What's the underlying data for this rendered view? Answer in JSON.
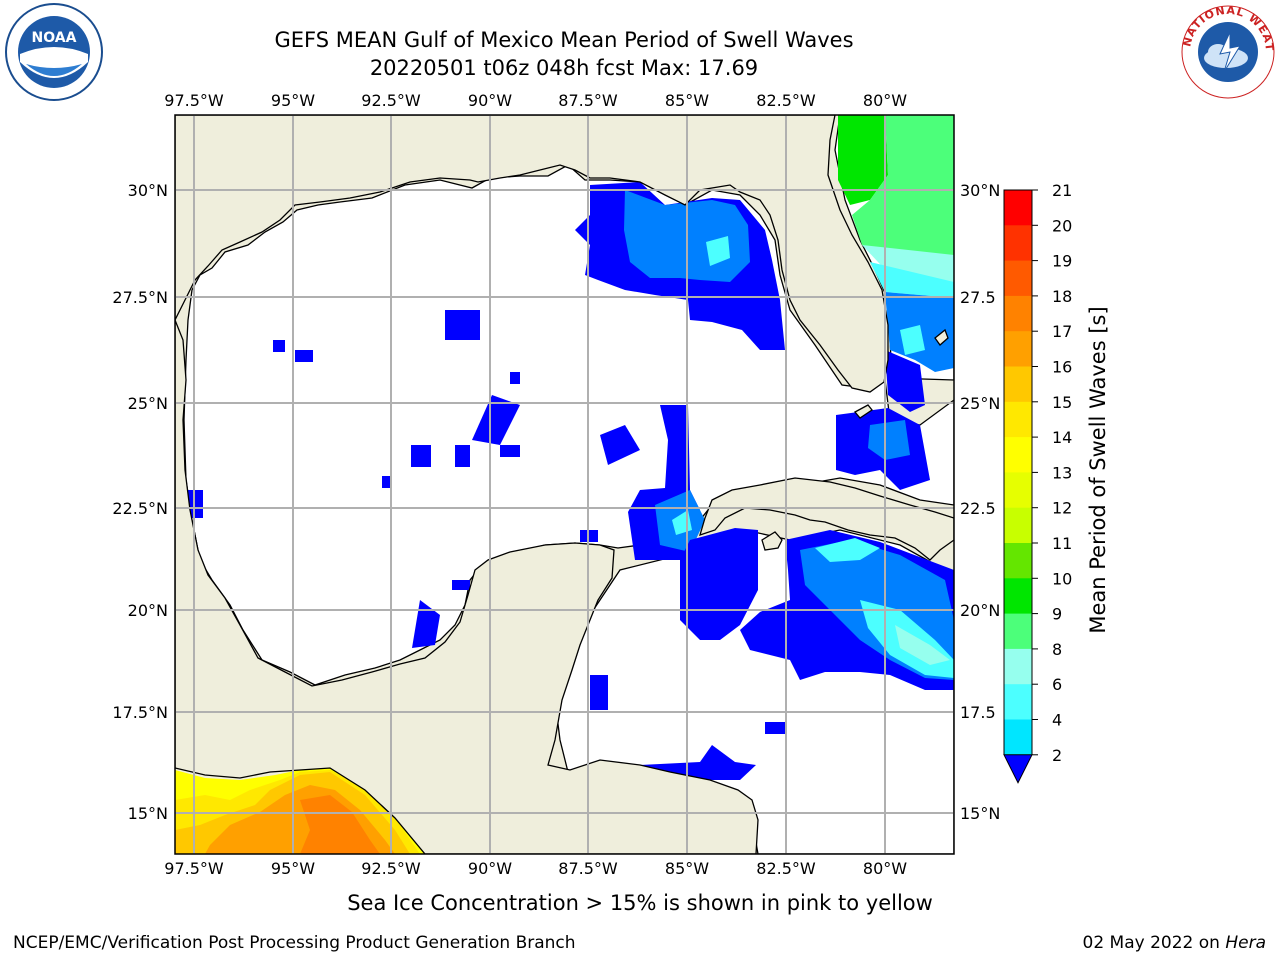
{
  "header": {
    "title_line1": "GEFS MEAN Gulf of Mexico Mean Period of Swell Waves",
    "title_line2": "20220501 t06z 048h fcst   Max: 17.69"
  },
  "map": {
    "lon_labels": [
      "97.5°W",
      "95°W",
      "92.5°W",
      "90°W",
      "87.5°W",
      "85°W",
      "82.5°W",
      "80°W"
    ],
    "lat_labels": [
      "30°N",
      "27.5°N",
      "25°N",
      "22.5°N",
      "20°N",
      "17.5°N",
      "15°N"
    ],
    "lat_labels_right": [
      "30°N",
      "27.5",
      "25°N",
      "22.5",
      "20°N",
      "17.5",
      "15°N"
    ],
    "land_color": "#efeedc",
    "ocean_nodata_color": "#ffffff",
    "grid_color": "#b0b0b0"
  },
  "colorbar": {
    "title": "Mean Period of Swell Waves [s]",
    "ticks": [
      "21",
      "20",
      "19",
      "18",
      "17",
      "16",
      "15",
      "14",
      "13",
      "12",
      "11",
      "10",
      "9",
      "8",
      "6",
      "4",
      "2"
    ],
    "colors": [
      "#ff0000",
      "#ff3200",
      "#ff5a00",
      "#ff8200",
      "#ffa000",
      "#ffc800",
      "#ffe800",
      "#ffff00",
      "#e6ff00",
      "#c8ff00",
      "#64e600",
      "#00e600",
      "#4cff7a",
      "#96ffee",
      "#4cffff",
      "#00e6ff",
      "#0080ff",
      "#0000ff"
    ],
    "extend_color": "#0000ff"
  },
  "footer": {
    "caption": "Sea Ice Concentration > 15% is shown in pink to yellow",
    "credit_left": "NCEP/EMC/Verification Post Processing Product Generation Branch",
    "credit_date": "02 May 2022 on ",
    "credit_machine": "Hera"
  },
  "logos": {
    "noaa_text": "NOAA",
    "nws_text": "NATIONAL WEATHER SERVICE"
  }
}
